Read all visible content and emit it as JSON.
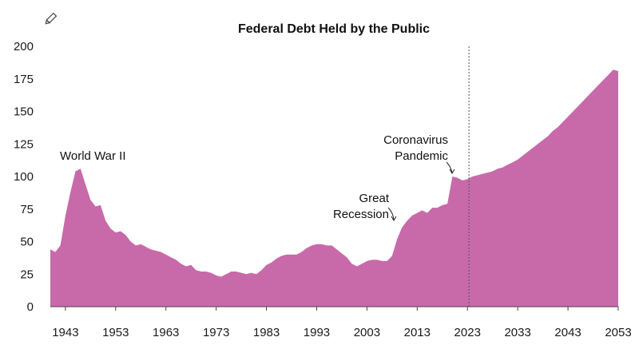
{
  "chart_data": {
    "type": "area",
    "title": "Federal Debt Held by the Public",
    "xlabel": "",
    "ylabel": "",
    "xlim": [
      1940,
      2053
    ],
    "ylim": [
      0,
      200
    ],
    "x_ticks": [
      1943,
      1953,
      1963,
      1973,
      1983,
      1993,
      2003,
      2013,
      2023,
      2033,
      2043,
      2053
    ],
    "y_ticks": [
      0,
      25,
      50,
      75,
      100,
      125,
      150,
      175,
      200
    ],
    "grid": false,
    "fill_color": "#C86AAA",
    "projection_start": 2023.3,
    "series": [
      {
        "x": [
          1940,
          1941,
          1942,
          1943,
          1944,
          1945,
          1946,
          1947,
          1948,
          1949,
          1950,
          1951,
          1952,
          1953,
          1954,
          1955,
          1956,
          1957,
          1958,
          1959,
          1960,
          1961,
          1962,
          1963,
          1964,
          1965,
          1966,
          1967,
          1968,
          1969,
          1970,
          1971,
          1972,
          1973,
          1974,
          1975,
          1976,
          1977,
          1978,
          1979,
          1980,
          1981,
          1982,
          1983,
          1984,
          1985,
          1986,
          1987,
          1988,
          1989,
          1990,
          1991,
          1992,
          1993,
          1994,
          1995,
          1996,
          1997,
          1998,
          1999,
          2000,
          2001,
          2002,
          2003,
          2004,
          2005,
          2006,
          2007,
          2008,
          2009,
          2010,
          2011,
          2012,
          2013,
          2014,
          2015,
          2016,
          2017,
          2018,
          2019,
          2020,
          2021,
          2022,
          2023,
          2024,
          2025,
          2026,
          2027,
          2028,
          2029,
          2030,
          2031,
          2032,
          2033,
          2034,
          2035,
          2036,
          2037,
          2038,
          2039,
          2040,
          2041,
          2042,
          2043,
          2044,
          2045,
          2046,
          2047,
          2048,
          2049,
          2050,
          2051,
          2052,
          2053
        ],
        "values": [
          44,
          42,
          47,
          70,
          88,
          104,
          106,
          94,
          82,
          77,
          78,
          66,
          60,
          57,
          58,
          55,
          50,
          47,
          48,
          46,
          44,
          43,
          42,
          40,
          38,
          36,
          33,
          31,
          32,
          28,
          27,
          27,
          26,
          24,
          23,
          25,
          27,
          27,
          26,
          25,
          26,
          25,
          28,
          32,
          34,
          37,
          39,
          40,
          40,
          40,
          42,
          45,
          47,
          48,
          48,
          47,
          47,
          44,
          41,
          38,
          33,
          31,
          33,
          35,
          36,
          36,
          35,
          35,
          39,
          52,
          61,
          66,
          70,
          72,
          74,
          72,
          76,
          76,
          78,
          79,
          100,
          99,
          97,
          98,
          100,
          101,
          102,
          103,
          104,
          106,
          107,
          109,
          111,
          113,
          116,
          119,
          122,
          125,
          128,
          131,
          135,
          138,
          142,
          146,
          150,
          154,
          158,
          162,
          166,
          170,
          174,
          178,
          182,
          181
        ]
      }
    ],
    "annotations": [
      {
        "id": "ww2",
        "lines": [
          "World War II"
        ],
        "x": 1946
      },
      {
        "id": "recession",
        "lines": [
          "Great",
          "Recession"
        ],
        "x": 2009
      },
      {
        "id": "pandemic",
        "lines": [
          "Coronavirus",
          "Pandemic"
        ],
        "x": 2020
      }
    ],
    "pencil_icon": "pencil-icon"
  }
}
